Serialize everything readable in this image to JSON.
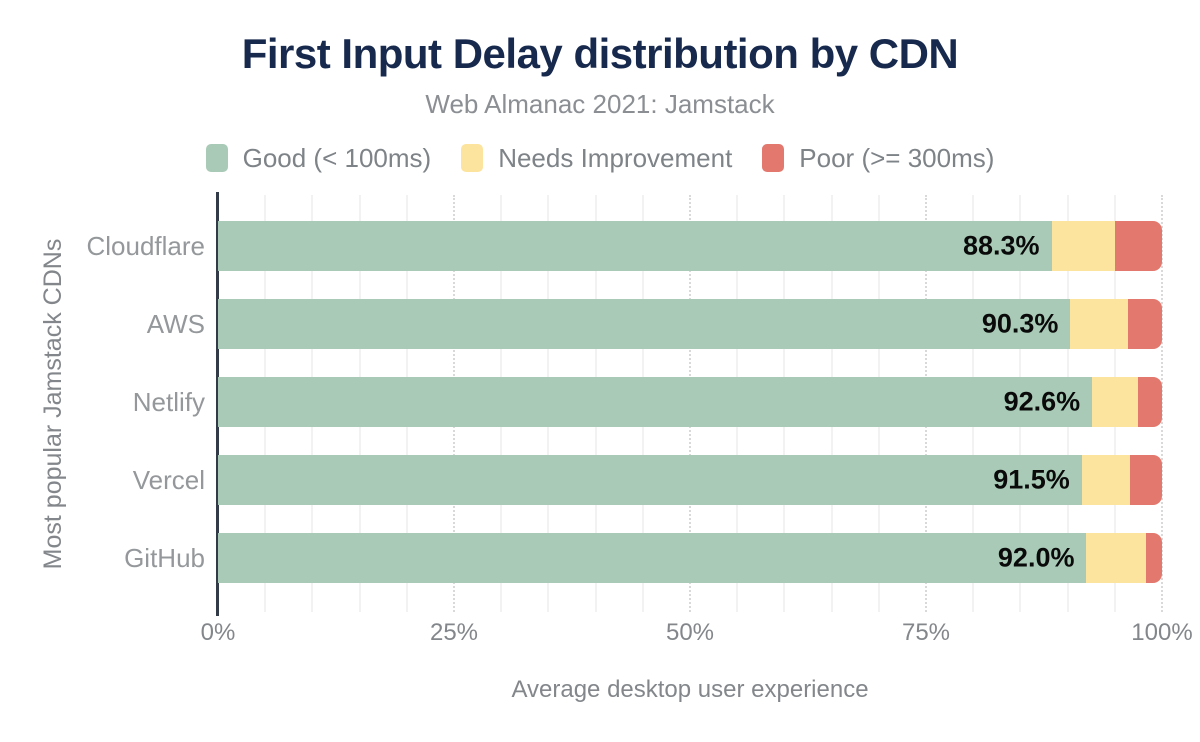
{
  "chart_data": {
    "type": "bar",
    "variant": "horizontal-stacked",
    "title": "First Input Delay distribution by CDN",
    "subtitle": "Web Almanac 2021: Jamstack",
    "categories": [
      "Cloudflare",
      "AWS",
      "Netlify",
      "Vercel",
      "GitHub"
    ],
    "series": [
      {
        "name": "Good (< 100ms)",
        "color": "#a8cab6",
        "values": [
          88.3,
          90.3,
          92.6,
          91.5,
          92.0
        ]
      },
      {
        "name": "Needs Improvement",
        "color": "#fce39e",
        "values": [
          6.7,
          6.1,
          4.9,
          5.1,
          6.3
        ]
      },
      {
        "name": "Poor (>= 300ms)",
        "color": "#e2786e",
        "values": [
          5.0,
          3.6,
          2.5,
          3.4,
          1.7
        ]
      }
    ],
    "bar_value_labels": [
      "88.3%",
      "90.3%",
      "92.6%",
      "91.5%",
      "92.0%"
    ],
    "xlabel": "Average desktop user experience",
    "ylabel": "Most popular Jamstack CDNs",
    "x_ticks": [
      "0%",
      "25%",
      "50%",
      "75%",
      "100%"
    ],
    "x_tick_values": [
      0,
      25,
      50,
      75,
      100
    ],
    "xlim": [
      0,
      100
    ],
    "grid": {
      "minor_step_pct": 5,
      "major_step_pct": 25,
      "major_style": "dotted",
      "minor_style": "solid"
    },
    "legend_position": "top"
  },
  "colors": {
    "title": "#17294d",
    "subtitle": "#8b8f93",
    "axis_text": "#83878b",
    "category_text": "#95989b",
    "bar_label": "#0a0a0a",
    "axis_line": "#333b49",
    "grid_minor": "#f2f2f2",
    "grid_major": "#d9d9d9",
    "background": "#ffffff"
  }
}
